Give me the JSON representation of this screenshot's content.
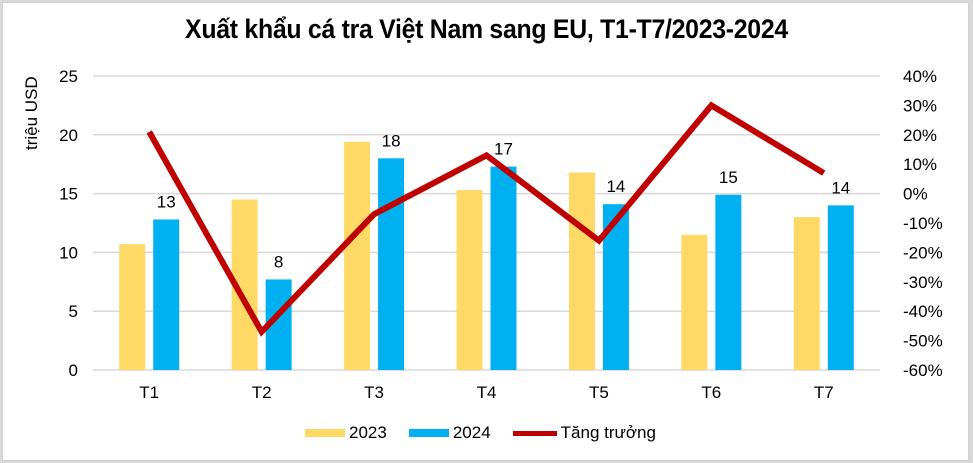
{
  "title": "Xuất khẩu cá tra Việt Nam sang EU, T1-T7/2023-2024",
  "colors": {
    "series_2023": "#FFD966",
    "series_2024": "#00B0F0",
    "growth": "#C00000",
    "grid": "#D9D9D9"
  },
  "legend": [
    {
      "label": "2023",
      "type": "bar",
      "color": "#FFD966"
    },
    {
      "label": "2024",
      "type": "bar",
      "color": "#00B0F0"
    },
    {
      "label": "Tăng trưởng",
      "type": "line",
      "color": "#C00000"
    }
  ],
  "chart_data": {
    "type": "bar",
    "title": "Xuất khẩu cá tra Việt Nam sang EU, T1-T7/2023-2024",
    "xlabel": "",
    "ylabel": "triệu USD",
    "y2label": "",
    "categories": [
      "T1",
      "T2",
      "T3",
      "T4",
      "T5",
      "T6",
      "T7"
    ],
    "ylim": [
      0,
      25
    ],
    "yticks": [
      0,
      5,
      10,
      15,
      20,
      25
    ],
    "y2lim": [
      -60,
      40
    ],
    "y2ticks": [
      "-60%",
      "-50%",
      "-40%",
      "-30%",
      "-20%",
      "-10%",
      "0%",
      "10%",
      "20%",
      "30%",
      "40%"
    ],
    "grid": true,
    "legend_position": "bottom",
    "series": [
      {
        "name": "2023",
        "type": "bar",
        "axis": "left",
        "values": [
          10.7,
          14.5,
          19.4,
          15.3,
          16.8,
          11.5,
          13.0
        ]
      },
      {
        "name": "2024",
        "type": "bar",
        "axis": "left",
        "values": [
          12.8,
          7.7,
          18.0,
          17.3,
          14.1,
          14.9,
          14.0
        ],
        "data_labels": [
          "13",
          "8",
          "18",
          "17",
          "14",
          "15",
          "14"
        ]
      },
      {
        "name": "Tăng trưởng",
        "type": "line",
        "axis": "right",
        "unit": "%",
        "values": [
          21,
          -47,
          -7,
          13,
          -16,
          30,
          7
        ]
      }
    ]
  }
}
